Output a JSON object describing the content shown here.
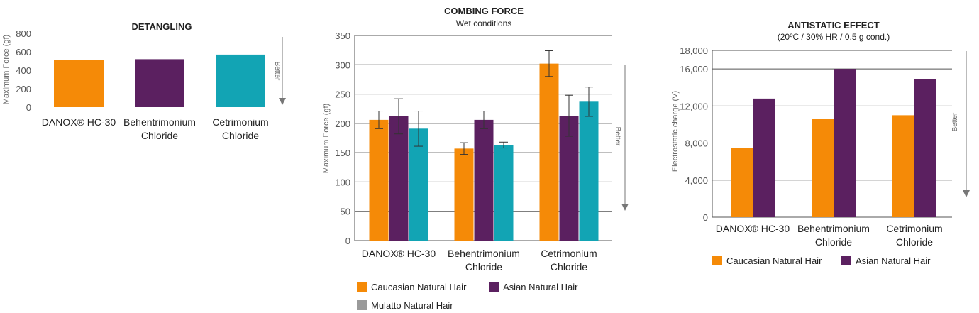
{
  "colors": {
    "caucasian": "#f58a07",
    "asian": "#5b2060",
    "mulatto": "#9a9a9a",
    "teal": "#12a4b4",
    "grid": "#555555",
    "arrow": "#666666"
  },
  "better_label": "Better",
  "chart_data": [
    {
      "type": "bar",
      "title": "DETANGLING",
      "subtitle": "",
      "ylabel": "Maximum Force (gf)",
      "xlabel": "",
      "ylim": [
        0,
        800
      ],
      "yticks": [
        "0",
        "200",
        "400",
        "600",
        "800"
      ],
      "grid": false,
      "categories": [
        [
          "DANOX® HC-30"
        ],
        [
          "Behentrimonium",
          "Chloride"
        ],
        [
          "Cetrimonium",
          "Chloride"
        ]
      ],
      "values": [
        510,
        520,
        570
      ],
      "bar_colors": [
        "#f58a07",
        "#5b2060",
        "#12a4b4"
      ]
    },
    {
      "type": "bar",
      "title": "COMBING FORCE",
      "subtitle": "Wet conditions",
      "ylabel": "Maximum Force (gf)",
      "xlabel": "",
      "ylim": [
        0,
        350
      ],
      "yticks": [
        "0",
        "50",
        "100",
        "150",
        "200",
        "250",
        "300",
        "350"
      ],
      "grid": true,
      "categories": [
        [
          "DANOX® HC-30"
        ],
        [
          "Behentrimonium",
          "Chloride"
        ],
        [
          "Cetrimonium",
          "Chloride"
        ]
      ],
      "series": [
        {
          "name": "Caucasian Natural Hair",
          "color": "#f58a07",
          "values": [
            206,
            157,
            302
          ],
          "errors": [
            15,
            10,
            22
          ]
        },
        {
          "name": "Asian Natural Hair",
          "color": "#5b2060",
          "values": [
            212,
            206,
            213
          ],
          "errors": [
            30,
            15,
            35
          ]
        },
        {
          "name": "Mulatto Natural Hair",
          "color": "#12a4b4",
          "values": [
            191,
            163,
            237
          ],
          "errors": [
            30,
            5,
            25
          ]
        }
      ],
      "legend": [
        "Caucasian Natural Hair",
        "Asian Natural Hair",
        "Mulatto Natural Hair"
      ],
      "legend_placement": "bottom"
    },
    {
      "type": "bar",
      "title": "ANTISTATIC EFFECT",
      "subtitle": "(20ºC / 30% HR / 0.5 g cond.)",
      "ylabel": "Electrostatic charge (V)",
      "xlabel": "",
      "ylim": [
        0,
        18000
      ],
      "yticks": [
        "0",
        "4,000",
        "8,000",
        "12,000",
        "16,000",
        "18,000"
      ],
      "ytick_values": [
        0,
        4000,
        8000,
        12000,
        16000,
        18000
      ],
      "grid": true,
      "categories": [
        [
          "DANOX® HC-30"
        ],
        [
          "Behentrimonium",
          "Chloride"
        ],
        [
          "Cetrimonium",
          "Chloride"
        ]
      ],
      "series": [
        {
          "name": "Caucasian Natural Hair",
          "color": "#f58a07",
          "values": [
            7500,
            10600,
            11000
          ]
        },
        {
          "name": "Asian Natural Hair",
          "color": "#5b2060",
          "values": [
            12800,
            16000,
            14900
          ]
        }
      ],
      "legend": [
        "Caucasian Natural Hair",
        "Asian Natural Hair"
      ],
      "legend_placement": "bottom"
    }
  ]
}
